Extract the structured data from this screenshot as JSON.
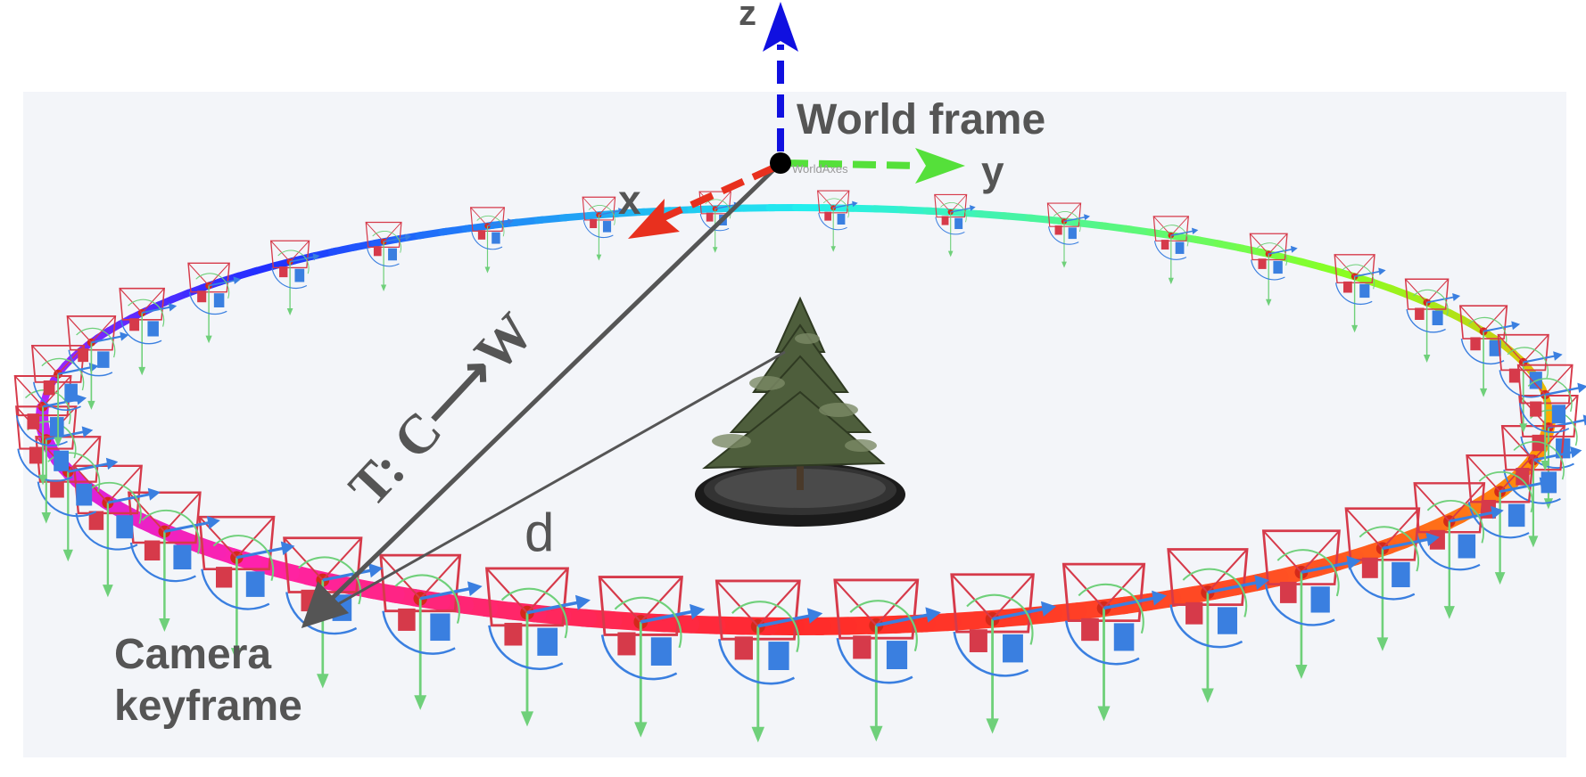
{
  "labels": {
    "z_axis": "z",
    "y_axis": "y",
    "x_axis": "x",
    "world_frame": "World frame",
    "world_axes_tag": "WorldAxes",
    "transform": "T: C⟶W",
    "distance": "d",
    "camera_line1": "Camera",
    "camera_line2": "keyframe"
  },
  "colors": {
    "viewport_bg": "#f3f5f9",
    "z_axis": "#1010e0",
    "y_axis": "#55e03a",
    "x_axis": "#e8301e",
    "vector": "#555555",
    "ring_gradient": [
      "#ffaa00",
      "#88ff22",
      "#22eeee",
      "#1f2fff",
      "#c222ff",
      "#ff22aa",
      "#ff2a2a",
      "#ff5522",
      "#ffaa00"
    ]
  },
  "icons": {
    "tree": "potted-tree-icon",
    "camera": "camera-frustum-icon",
    "origin": "origin-dot-icon"
  }
}
